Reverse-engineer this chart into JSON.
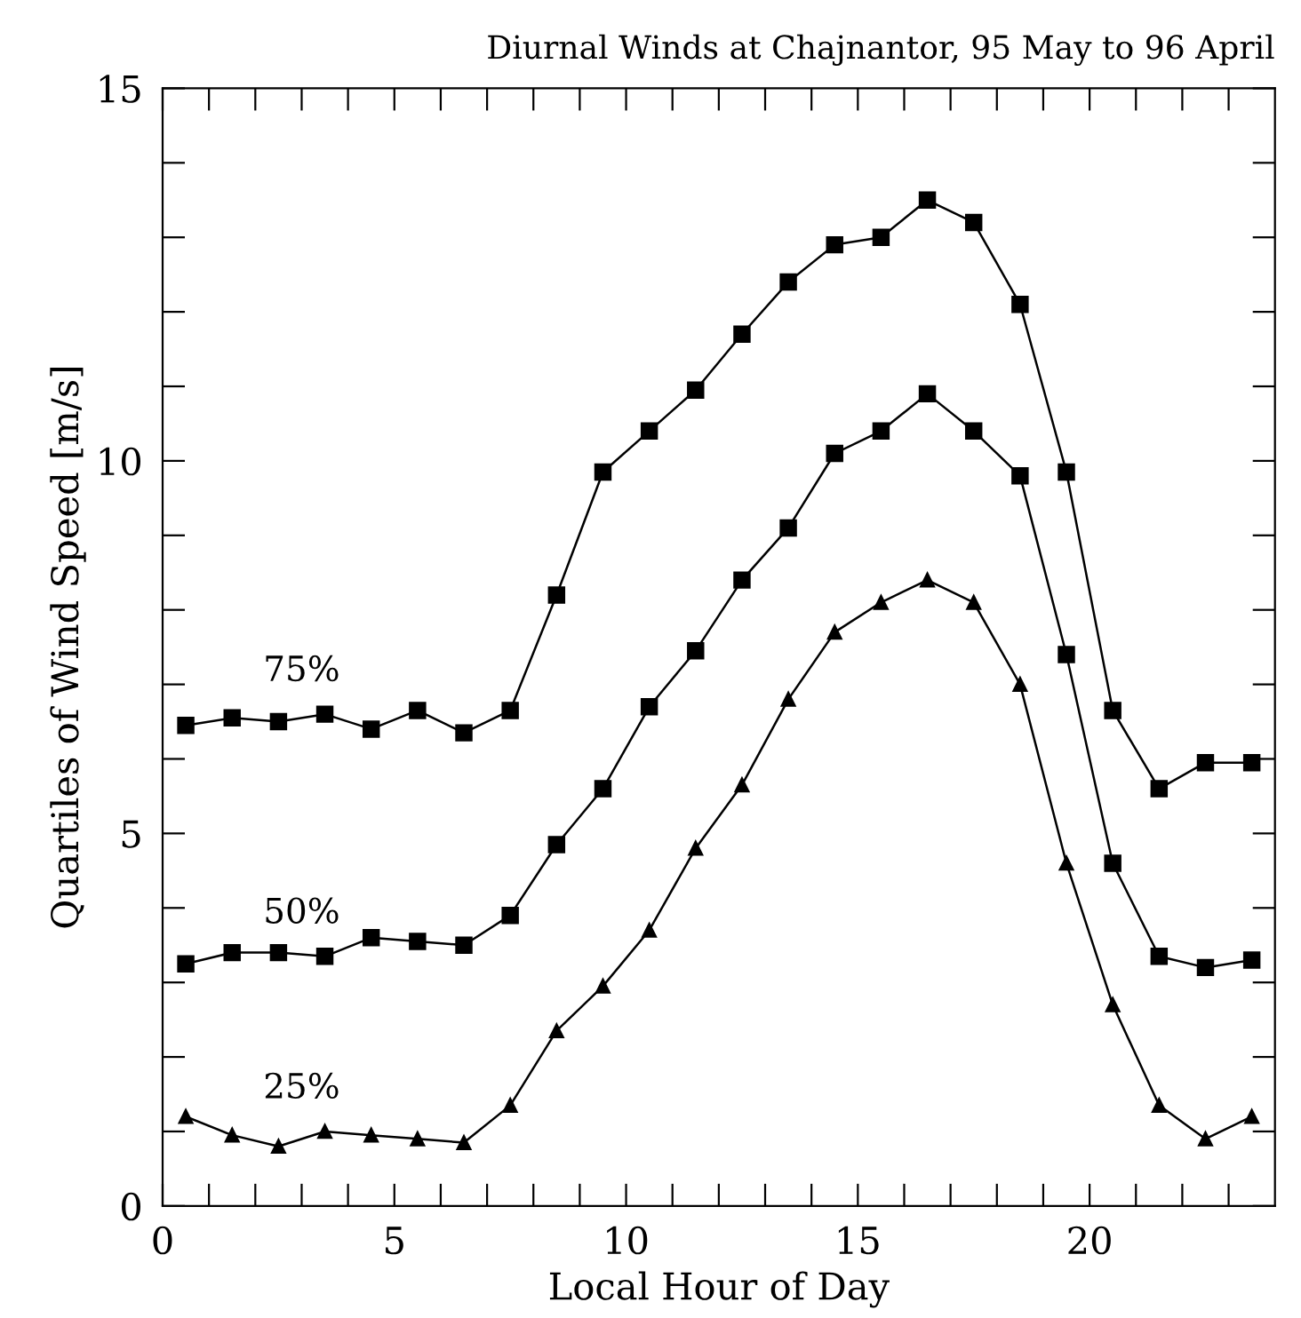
{
  "chart_data": {
    "type": "line",
    "title": "Diurnal Winds at Chajnantor, 95 May to 96 April",
    "xlabel": "Local Hour of Day",
    "ylabel": "Quartiles of Wind Speed [m/s]",
    "x": [
      0.5,
      1.5,
      2.5,
      3.5,
      4.5,
      5.5,
      6.5,
      7.5,
      8.5,
      9.5,
      10.5,
      11.5,
      12.5,
      13.5,
      14.5,
      15.5,
      16.5,
      17.5,
      18.5,
      19.5,
      20.5,
      21.5,
      22.5,
      23.5
    ],
    "series": [
      {
        "name": "75%",
        "color": "#000000",
        "marker": "square",
        "values": [
          6.45,
          6.55,
          6.5,
          6.6,
          6.4,
          6.65,
          6.35,
          6.65,
          8.2,
          9.85,
          10.4,
          10.95,
          11.7,
          12.4,
          12.9,
          13.0,
          13.5,
          13.2,
          12.1,
          9.85,
          6.65,
          5.6,
          5.95,
          5.95
        ]
      },
      {
        "name": "50%",
        "color": "#000000",
        "marker": "square",
        "values": [
          3.25,
          3.4,
          3.4,
          3.35,
          3.6,
          3.55,
          3.5,
          3.9,
          4.85,
          5.6,
          6.7,
          7.45,
          8.4,
          9.1,
          10.1,
          10.4,
          10.9,
          10.4,
          9.8,
          7.4,
          4.6,
          3.35,
          3.2,
          3.3
        ]
      },
      {
        "name": "25%",
        "color": "#000000",
        "marker": "triangle",
        "values": [
          1.2,
          0.95,
          0.8,
          1.0,
          0.95,
          0.9,
          0.85,
          1.35,
          2.35,
          2.95,
          3.7,
          4.8,
          5.65,
          6.8,
          7.7,
          8.1,
          8.4,
          8.1,
          7.0,
          4.6,
          2.7,
          1.35,
          0.9,
          1.2
        ]
      }
    ],
    "xlim": [
      0,
      24
    ],
    "ylim": [
      0,
      15
    ],
    "xticks": [
      0,
      {
        "value": 1,
        "label": null
      },
      {
        "value": 2,
        "label": null
      },
      {
        "value": 3,
        "label": null
      },
      {
        "value": 4,
        "label": null
      },
      5,
      {
        "value": 6,
        "label": null
      },
      {
        "value": 7,
        "label": null
      },
      {
        "value": 8,
        "label": null
      },
      {
        "value": 9,
        "label": null
      },
      10,
      {
        "value": 11,
        "label": null
      },
      {
        "value": 12,
        "label": null
      },
      {
        "value": 13,
        "label": null
      },
      {
        "value": 14,
        "label": null
      },
      15,
      {
        "value": 16,
        "label": null
      },
      {
        "value": 17,
        "label": null
      },
      {
        "value": 18,
        "label": null
      },
      {
        "value": 19,
        "label": null
      },
      20,
      {
        "value": 21,
        "label": null
      },
      {
        "value": 22,
        "label": null
      },
      {
        "value": 23,
        "label": null
      }
    ],
    "yticks": [
      0,
      {
        "value": 1,
        "label": null
      },
      {
        "value": 2,
        "label": null
      },
      {
        "value": 3,
        "label": null
      },
      {
        "value": 4,
        "label": null
      },
      5,
      {
        "value": 6,
        "label": null
      },
      {
        "value": 7,
        "label": null
      },
      {
        "value": 8,
        "label": null
      },
      {
        "value": 9,
        "label": null
      },
      10,
      {
        "value": 11,
        "label": null
      },
      {
        "value": 12,
        "label": null
      },
      {
        "value": 13,
        "label": null
      },
      {
        "value": 14,
        "label": null
      },
      15
    ],
    "grid": false,
    "legend": false,
    "line_style": "solid"
  }
}
